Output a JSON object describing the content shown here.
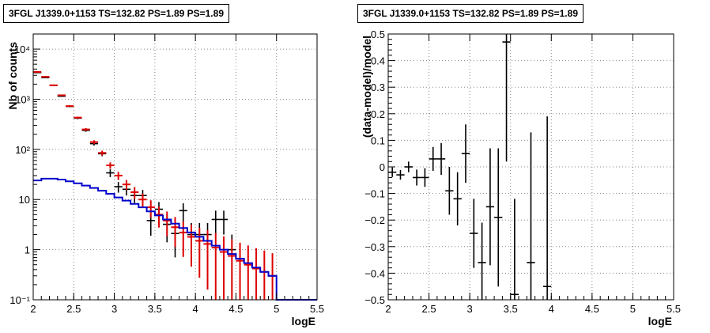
{
  "panels": [
    {
      "title": "3FGL J1339.0+1153 TS=132.82 PS=1.89 PS=1.89"
    },
    {
      "title": "3FGL J1339.0+1153 TS=132.82 PS=1.89 PS=1.89"
    }
  ],
  "chart_data": [
    {
      "type": "line",
      "title": "3FGL J1339.0+1153 TS=132.82 PS=1.89 PS=1.89",
      "xlabel": "logE",
      "ylabel": "Nb of counts",
      "xlim": [
        2,
        5.5
      ],
      "ylim": [
        0.1,
        20000
      ],
      "yscale": "log",
      "grid": true,
      "xticks": [
        "2",
        "2.5",
        "3",
        "3.5",
        "4",
        "4.5",
        "5",
        "5.5"
      ],
      "yticks": [
        "10⁻¹",
        "1",
        "10",
        "10²",
        "10³",
        "10⁴"
      ],
      "series": [
        {
          "kind": "data",
          "color": "#000000",
          "x": [
            2.05,
            2.15,
            2.25,
            2.35,
            2.45,
            2.55,
            2.65,
            2.75,
            2.85,
            2.95,
            3.05,
            3.15,
            3.25,
            3.35,
            3.45,
            3.55,
            3.65,
            3.75,
            3.85,
            3.95,
            4.05,
            4.15,
            4.25,
            4.35,
            4.45
          ],
          "y": [
            3400,
            2700,
            1900,
            1150,
            720,
            420,
            240,
            130,
            82,
            34,
            18,
            16,
            12,
            12,
            3.8,
            6.4,
            3.2,
            2.1,
            6.0,
            2.0,
            2.0,
            2.0,
            4.0,
            4.0,
            1.0
          ],
          "yerr": [
            60,
            52,
            44,
            34,
            27,
            21,
            16,
            11,
            9,
            6,
            4.3,
            4.0,
            3.5,
            3.5,
            1.9,
            2.5,
            1.8,
            1.4,
            2.4,
            1.4,
            1.4,
            1.4,
            2.0,
            2.0,
            1.0
          ]
        },
        {
          "kind": "model",
          "color": "#dd0000",
          "x": [
            2.05,
            2.15,
            2.25,
            2.35,
            2.45,
            2.55,
            2.65,
            2.75,
            2.85,
            2.95,
            3.05,
            3.15,
            3.25,
            3.35,
            3.45,
            3.55,
            3.65,
            3.75,
            3.85,
            3.95,
            4.05,
            4.15,
            4.25,
            4.35,
            4.45,
            4.55,
            4.65,
            4.75,
            4.85,
            4.95
          ],
          "y": [
            3500,
            2800,
            1900,
            1200,
            730,
            430,
            250,
            140,
            85,
            48,
            30,
            20,
            14,
            10,
            7.0,
            5.0,
            3.8,
            2.8,
            2.2,
            1.8,
            1.5,
            1.3,
            1.1,
            0.9,
            0.75,
            0.6,
            0.5,
            0.42,
            0.36,
            0.3
          ]
        },
        {
          "kind": "source-model",
          "color": "#0000cc",
          "x": [
            2.05,
            2.15,
            2.25,
            2.35,
            2.45,
            2.55,
            2.65,
            2.75,
            2.85,
            2.95,
            3.05,
            3.15,
            3.25,
            3.35,
            3.45,
            3.55,
            3.65,
            3.75,
            3.85,
            3.95,
            4.05,
            4.15,
            4.25,
            4.35,
            4.45,
            4.55,
            4.65,
            4.75,
            4.85,
            4.95,
            5.05,
            5.15,
            5.25,
            5.35,
            5.45
          ],
          "y": [
            24,
            26,
            26,
            25,
            23,
            21,
            19,
            17,
            15,
            13,
            11,
            9.5,
            8.2,
            7.0,
            5.8,
            4.8,
            4.0,
            3.3,
            2.7,
            2.2,
            1.8,
            1.5,
            1.2,
            1.0,
            0.82,
            0.66,
            0.54,
            0.44,
            0.36,
            0.3,
            0.1,
            0.1,
            0.1,
            0.1,
            0.1
          ]
        }
      ]
    },
    {
      "type": "scatter",
      "title": "3FGL J1339.0+1153 TS=132.82 PS=1.89 PS=1.89",
      "xlabel": "logE",
      "ylabel": "(data-model)/model",
      "xlim": [
        2,
        5.5
      ],
      "ylim": [
        -0.5,
        0.5
      ],
      "grid": true,
      "xticks": [
        "2",
        "2.5",
        "3",
        "3.5",
        "4",
        "4.5",
        "5",
        "5.5"
      ],
      "yticks": [
        "−0.5",
        "−0.4",
        "−0.3",
        "−0.2",
        "−0.1",
        "0",
        "0.1",
        "0.2",
        "0.3",
        "0.4",
        "0.5"
      ],
      "series": [
        {
          "kind": "residuals",
          "color": "#000000",
          "x": [
            2.05,
            2.15,
            2.25,
            2.35,
            2.45,
            2.55,
            2.65,
            2.75,
            2.85,
            2.95,
            3.05,
            3.15,
            3.25,
            3.35,
            3.45,
            3.55,
            3.75,
            3.95
          ],
          "y": [
            -0.02,
            -0.03,
            0.0,
            -0.04,
            -0.04,
            0.03,
            0.03,
            -0.09,
            -0.12,
            0.05,
            -0.25,
            -0.36,
            -0.15,
            -0.19,
            0.47,
            -0.48,
            -0.36,
            -0.45
          ],
          "yerr": [
            0.018,
            0.018,
            0.02,
            0.03,
            0.035,
            0.045,
            0.06,
            0.09,
            0.1,
            0.11,
            0.13,
            0.15,
            0.22,
            0.26,
            0.45,
            0.36,
            0.49,
            0.64
          ]
        }
      ]
    }
  ]
}
